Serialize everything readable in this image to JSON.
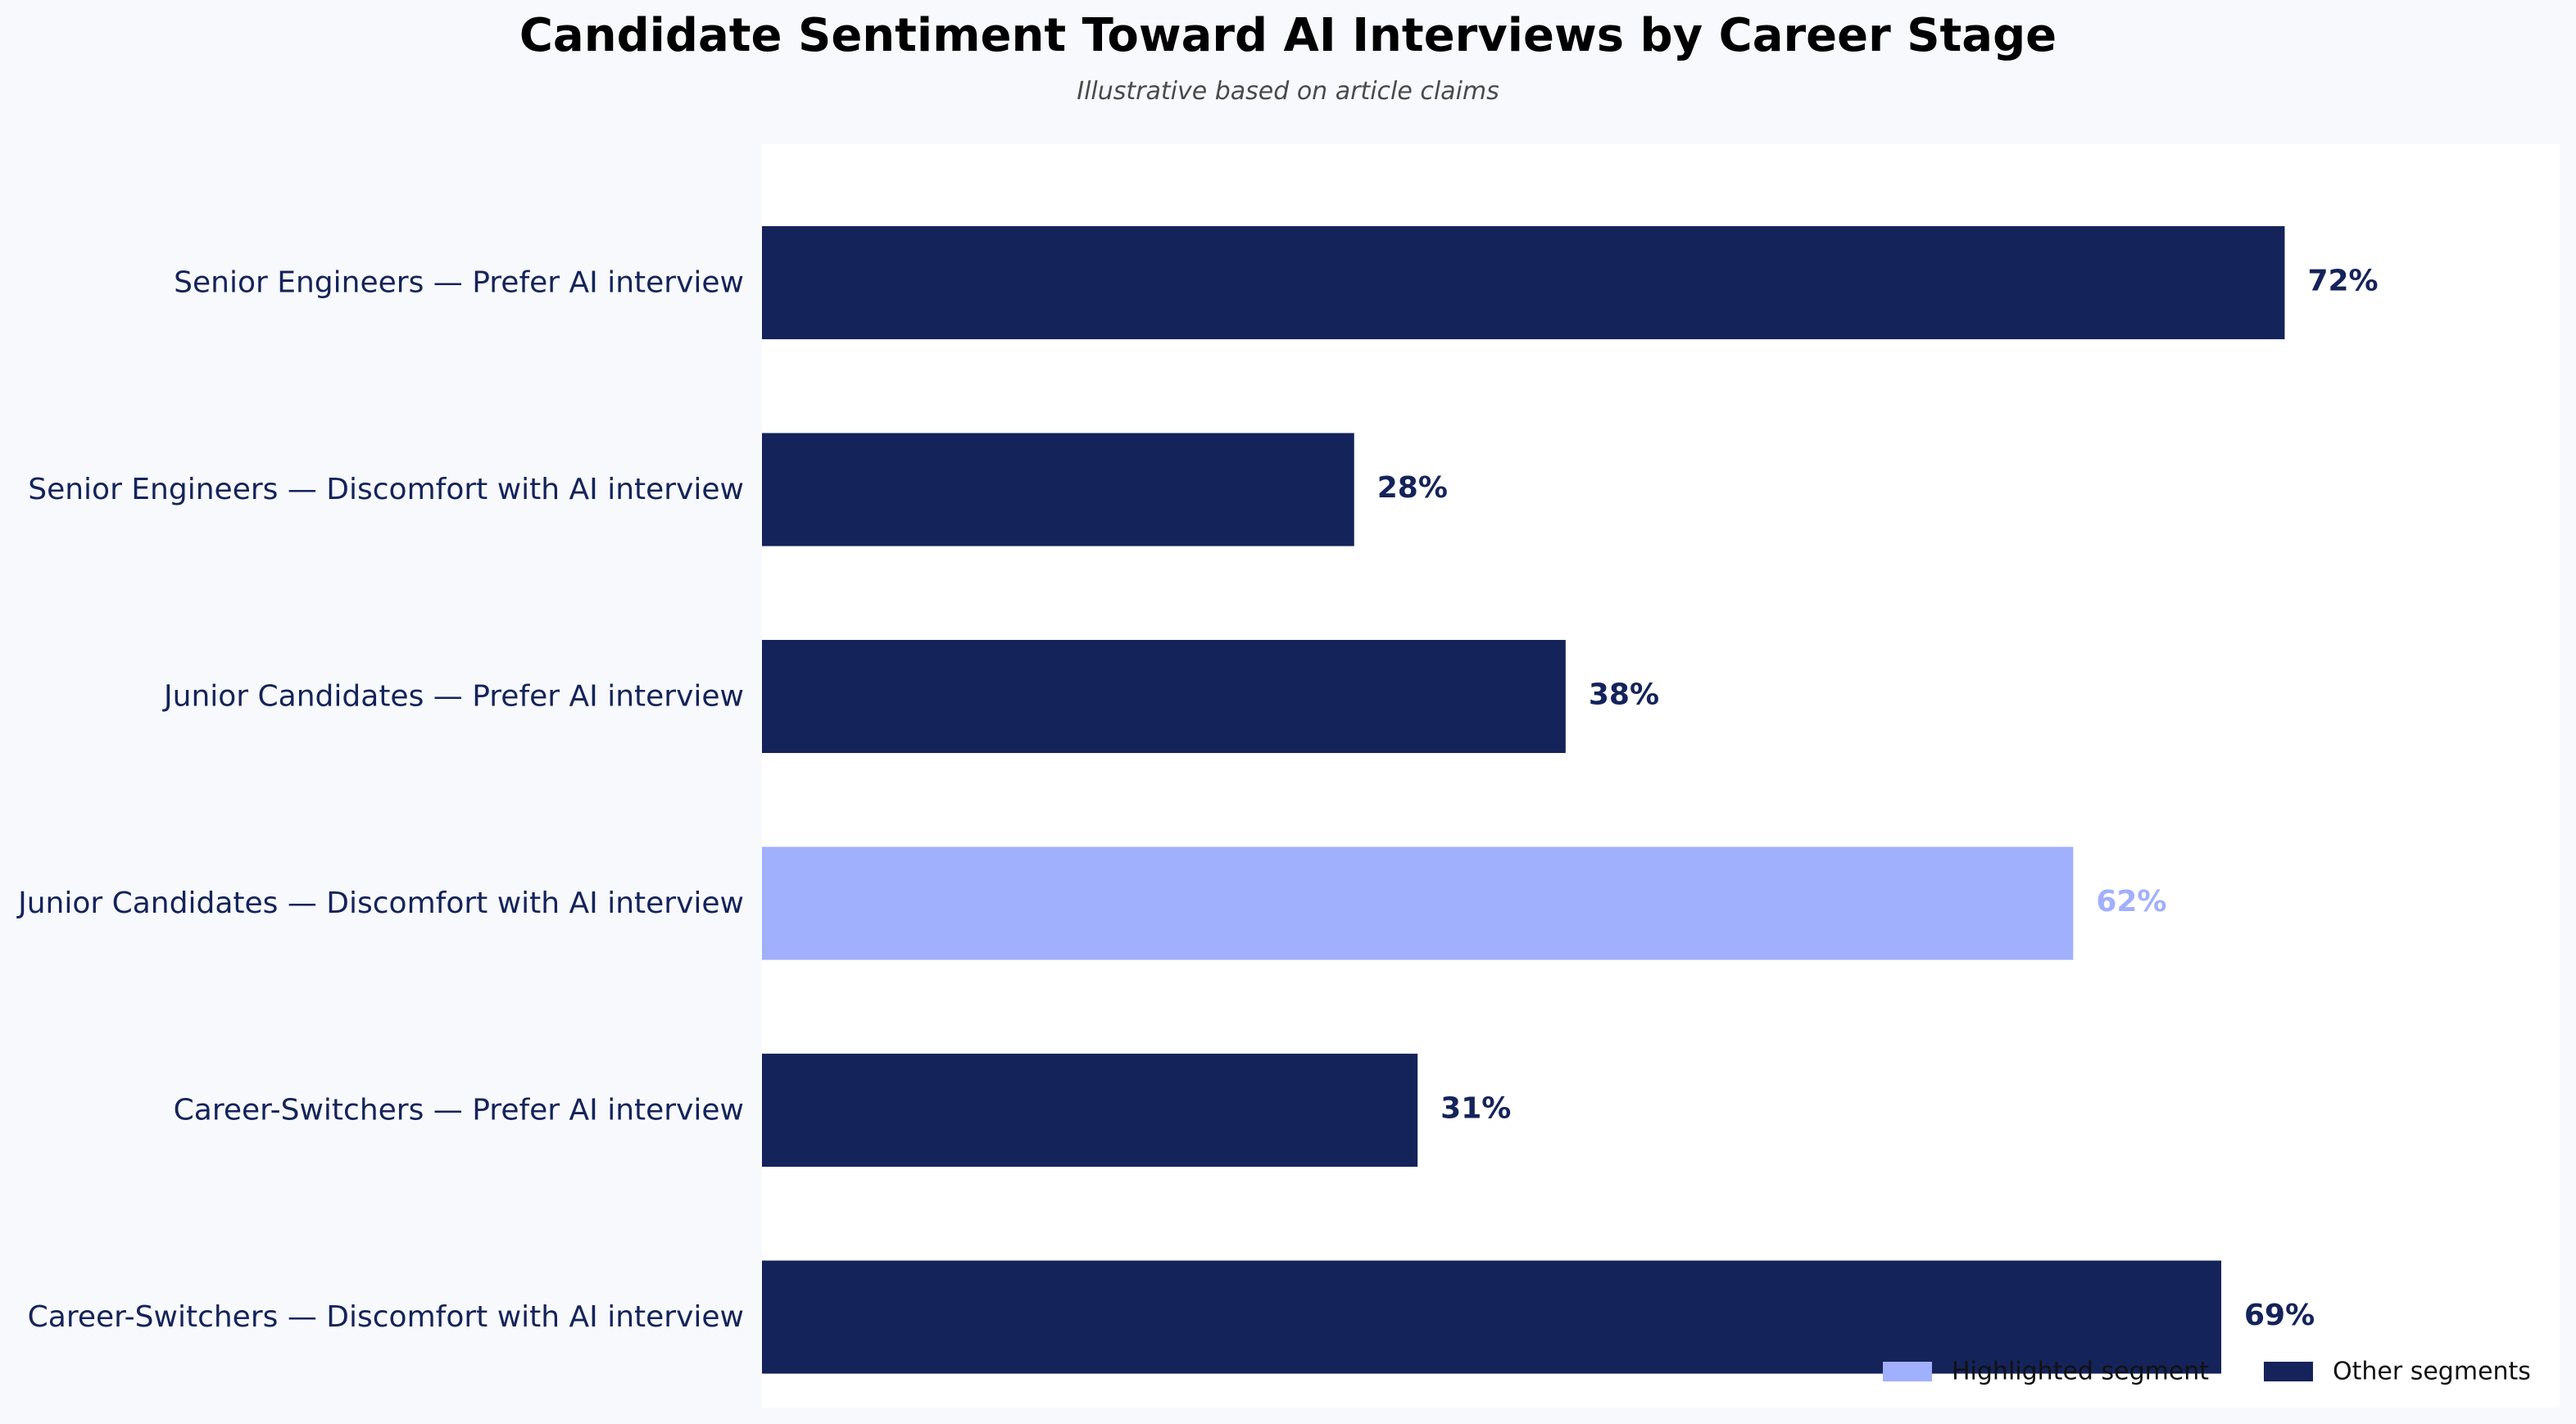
{
  "chart_data": {
    "type": "bar",
    "orientation": "horizontal",
    "title": "Candidate Sentiment Toward AI Interviews by Career Stage",
    "subtitle": "Illustrative based on article claims",
    "categories": [
      "Senior Engineers — Prefer AI interview",
      "Senior Engineers — Discomfort with AI interview",
      "Junior Candidates — Prefer AI interview",
      "Junior Candidates — Discomfort with AI interview",
      "Career-Switchers — Prefer AI interview",
      "Career-Switchers — Discomfort with AI interview"
    ],
    "values": [
      72,
      28,
      38,
      62,
      31,
      69
    ],
    "value_labels": [
      "72%",
      "28%",
      "38%",
      "62%",
      "31%",
      "69%"
    ],
    "highlighted": [
      false,
      false,
      false,
      true,
      false,
      false
    ],
    "xlim": [
      0,
      85
    ],
    "grid": false,
    "x_axis_visible": false,
    "legend": {
      "position": "bottom-right",
      "entries": [
        {
          "label": "Highlighted segment",
          "color": "#a0b0fc"
        },
        {
          "label": "Other segments",
          "color": "#14235a"
        }
      ]
    },
    "colors": {
      "highlight": "#a0b0fc",
      "other": "#14235a",
      "plot_background": "#ffffff",
      "page_background": "#f7f9fc"
    }
  }
}
